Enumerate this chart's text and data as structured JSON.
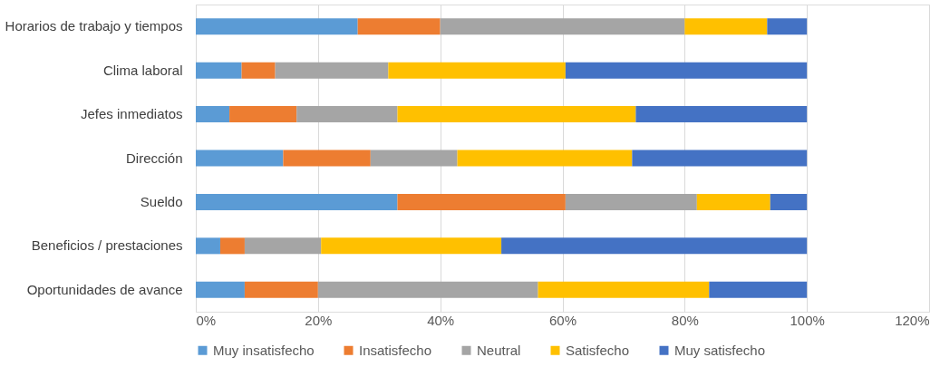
{
  "chart_data": {
    "type": "bar",
    "orientation": "horizontal",
    "stacked": true,
    "categories": [
      "Horarios de trabajo y tiempos",
      "Clima laboral",
      "Jefes inmediatos",
      "Dirección",
      "Sueldo",
      "Beneficios / prestaciones",
      "Oportunidades de avance"
    ],
    "series": [
      {
        "name": "Muy insatisfecho",
        "color": "#5b9bd5",
        "values": [
          26.5,
          7.5,
          5.5,
          14.3,
          33,
          4,
          8
        ]
      },
      {
        "name": "Insatisfecho",
        "color": "#ed7d31",
        "values": [
          13.5,
          5.5,
          11,
          14.3,
          27.5,
          4,
          12
        ]
      },
      {
        "name": "Neutral",
        "color": "#a5a5a5",
        "values": [
          40,
          18.5,
          16.5,
          14.2,
          21.5,
          12.5,
          36
        ]
      },
      {
        "name": "Satisfecho",
        "color": "#ffc000",
        "values": [
          13.5,
          29,
          39,
          28.6,
          12,
          29.5,
          28
        ]
      },
      {
        "name": "Muy satisfecho",
        "color": "#4472c4",
        "values": [
          6.5,
          39.5,
          28,
          28.6,
          6,
          50,
          16
        ]
      }
    ],
    "xlim": [
      0,
      120
    ],
    "xticks": [
      {
        "value": 0,
        "label": "0%"
      },
      {
        "value": 20,
        "label": "20%"
      },
      {
        "value": 40,
        "label": "40%"
      },
      {
        "value": 60,
        "label": "60%"
      },
      {
        "value": 80,
        "label": "80%"
      },
      {
        "value": 100,
        "label": "100%"
      },
      {
        "value": 120,
        "label": "120%"
      }
    ],
    "grid": "x",
    "legend": "bottom"
  }
}
